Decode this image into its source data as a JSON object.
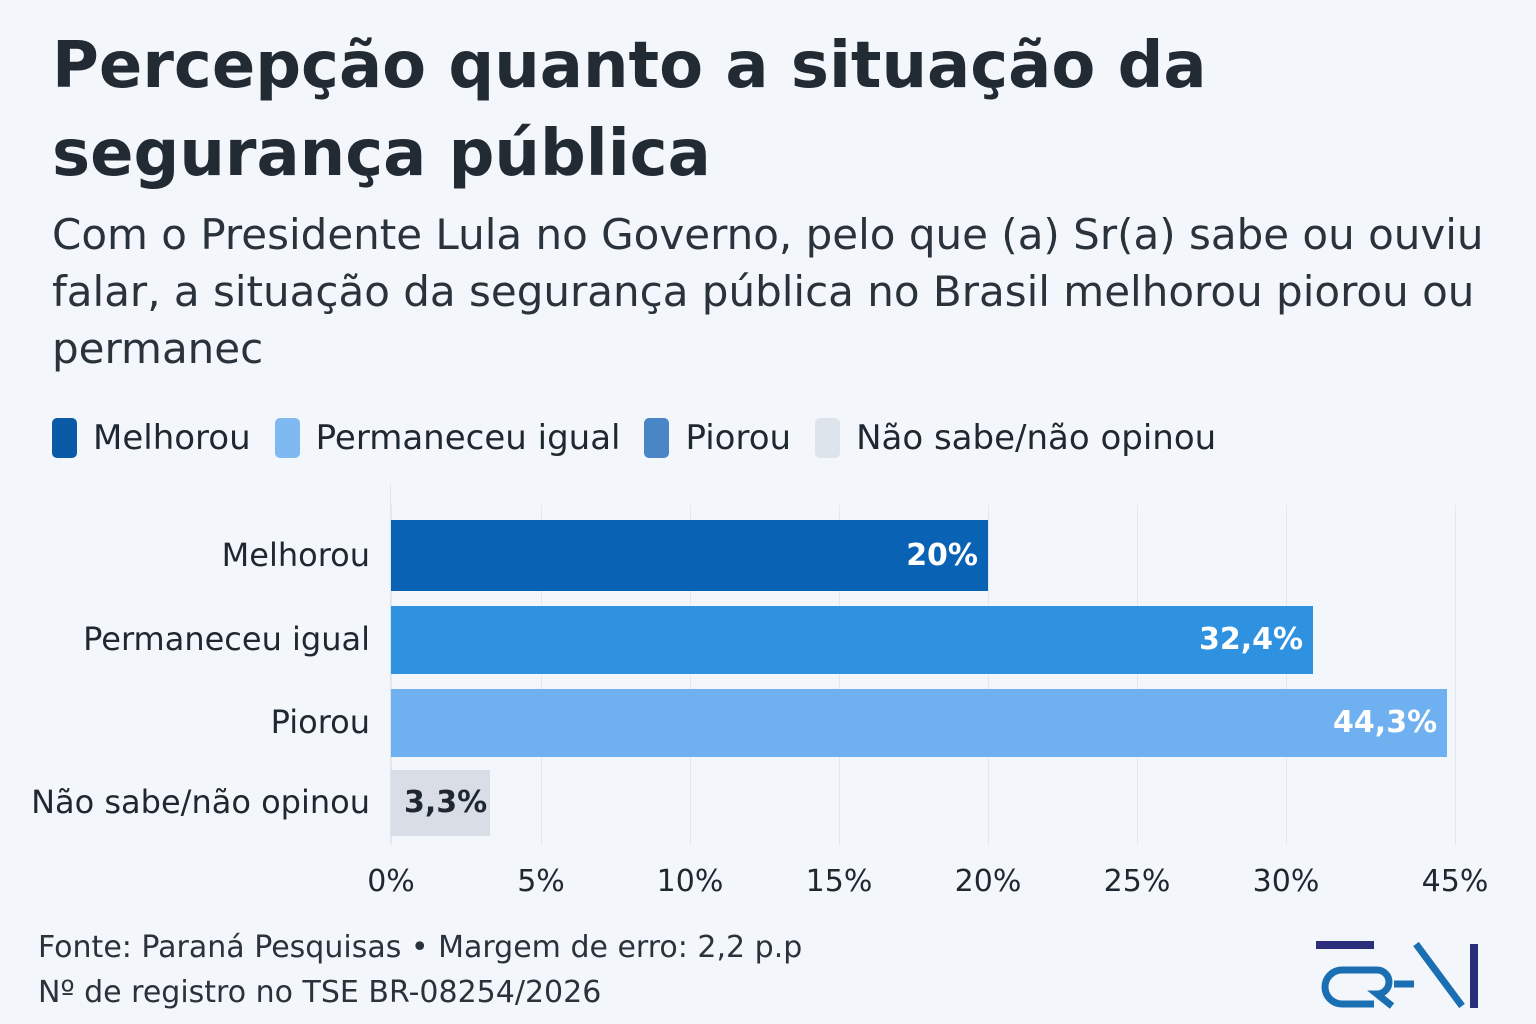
{
  "title": "Percepção quanto a situação da segurança pública",
  "subtitle": "Com o Presidente Lula no Governo, pelo que  (a) Sr(a) sabe ou ouviu falar, a situação da segurança pública no Brasil melhorou piorou ou permanec",
  "legend": [
    {
      "label": "Melhorou",
      "color": "#0a5aa8"
    },
    {
      "label": "Permaneceu  igual",
      "color": "#7fb9f2"
    },
    {
      "label": "Piorou",
      "color": "#4a86c5"
    },
    {
      "label": "Não sabe/não opinou",
      "color": "#dde4ec"
    }
  ],
  "chart_data": {
    "type": "bar",
    "orientation": "horizontal",
    "title": "Percepção quanto a situação da segurança pública",
    "categories": [
      "Melhorou",
      "Permaneceu igual",
      "Piorou",
      "Não sabe/não opinou"
    ],
    "values": [
      20,
      32.4,
      44.3,
      3.3
    ],
    "value_labels": [
      "20%",
      "32,4%",
      "44,3%",
      "3,3%"
    ],
    "colors": [
      "#0a62b5",
      "#2f92e0",
      "#6fb0f0",
      "#d9dee6"
    ],
    "x_ticks": [
      0,
      5,
      10,
      15,
      20,
      25,
      30,
      45
    ],
    "x_tick_labels": [
      "0%",
      "5%",
      "10%",
      "15%",
      "20%",
      "25%",
      "30%",
      "45%"
    ],
    "xlim": [
      0,
      45
    ],
    "grid": true
  },
  "footer": {
    "line1": "Fonte: Paraná Pesquisas • Margem de erro: 2,2 p.p",
    "line2": "Nº de registro no TSE BR-08254/2026"
  },
  "logo_text": "CRA1"
}
